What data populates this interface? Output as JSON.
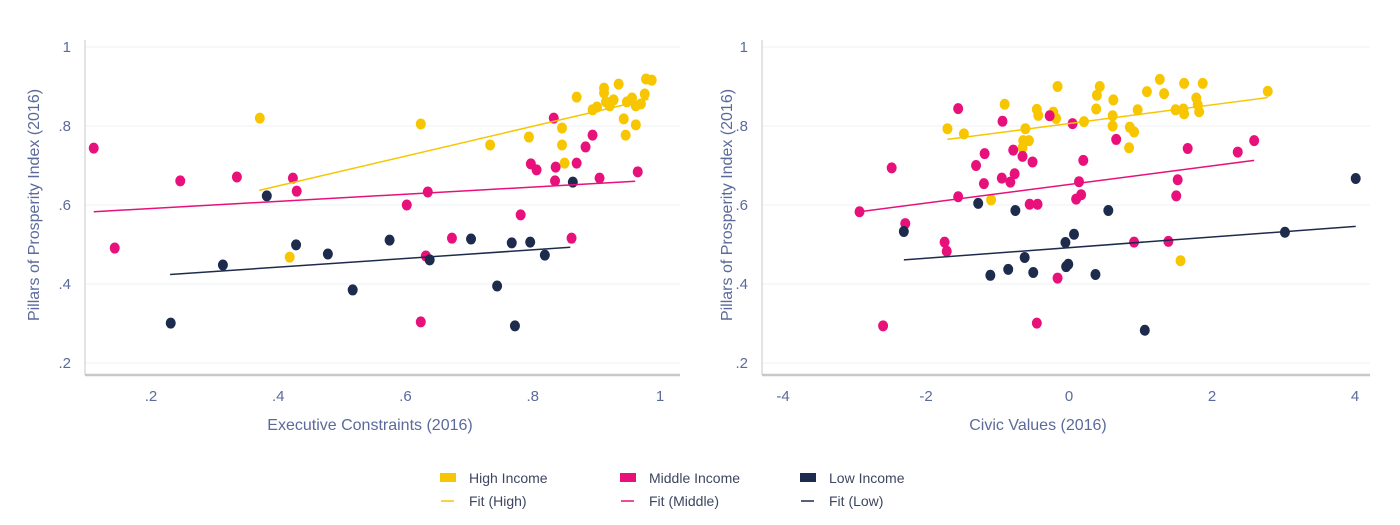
{
  "colors": {
    "high": "#f7c600",
    "middle": "#e8107a",
    "low": "#1d2b4c",
    "grid": "#eef1f3",
    "axis": "#c8c8c8"
  },
  "legend": {
    "items": [
      {
        "label": "High Income",
        "kind": "swatch",
        "series": "high"
      },
      {
        "label": "Middle Income",
        "kind": "swatch",
        "series": "middle"
      },
      {
        "label": "Low Income",
        "kind": "swatch",
        "series": "low"
      },
      {
        "label": "Fit (High)",
        "kind": "line",
        "series": "high"
      },
      {
        "label": "Fit (Middle)",
        "kind": "line",
        "series": "middle"
      },
      {
        "label": "Fit (Low)",
        "kind": "line",
        "series": "low"
      }
    ]
  },
  "chart_data": [
    {
      "type": "scatter",
      "xlabel": "Executive Constraints (2016)",
      "ylabel": "Pillars of Prosperity Index (2016)",
      "xlim": [
        0.096,
        1.03
      ],
      "ylim": [
        0.17,
        1.02
      ],
      "xticks": [
        {
          "v": 0.2,
          "label": ".2"
        },
        {
          "v": 0.4,
          "label": ".4"
        },
        {
          "v": 0.6,
          "label": ".6"
        },
        {
          "v": 0.8,
          "label": ".8"
        },
        {
          "v": 1,
          "label": "1"
        }
      ],
      "yticks": [
        {
          "v": 0.2,
          "label": ".2"
        },
        {
          "v": 0.4,
          "label": ".4"
        },
        {
          "v": 0.6,
          "label": ".6"
        },
        {
          "v": 0.8,
          "label": ".8"
        },
        {
          "v": 1,
          "label": "1"
        }
      ],
      "grid": true,
      "series": [
        {
          "name": "High Income",
          "key": "high",
          "points": [
            [
              0.371,
              0.82
            ],
            [
              0.624,
              0.805
            ],
            [
              0.418,
              0.468
            ],
            [
              0.733,
              0.752
            ],
            [
              0.794,
              0.772
            ],
            [
              0.846,
              0.795
            ],
            [
              0.846,
              0.752
            ],
            [
              0.85,
              0.706
            ],
            [
              0.869,
              0.873
            ],
            [
              0.894,
              0.841
            ],
            [
              0.901,
              0.848
            ],
            [
              0.912,
              0.896
            ],
            [
              0.912,
              0.884
            ],
            [
              0.915,
              0.861
            ],
            [
              0.921,
              0.851
            ],
            [
              0.927,
              0.866
            ],
            [
              0.935,
              0.906
            ],
            [
              0.943,
              0.818
            ],
            [
              0.946,
              0.777
            ],
            [
              0.948,
              0.861
            ],
            [
              0.956,
              0.871
            ],
            [
              0.962,
              0.851
            ],
            [
              0.97,
              0.856
            ],
            [
              0.976,
              0.881
            ],
            [
              0.978,
              0.919
            ],
            [
              0.987,
              0.916
            ],
            [
              0.962,
              0.803
            ]
          ]
        },
        {
          "name": "Middle Income",
          "key": "middle",
          "points": [
            [
              0.11,
              0.744
            ],
            [
              0.143,
              0.491
            ],
            [
              0.246,
              0.661
            ],
            [
              0.335,
              0.671
            ],
            [
              0.423,
              0.668
            ],
            [
              0.429,
              0.635
            ],
            [
              0.602,
              0.6
            ],
            [
              0.635,
              0.633
            ],
            [
              0.624,
              0.304
            ],
            [
              0.632,
              0.471
            ],
            [
              0.673,
              0.516
            ],
            [
              0.781,
              0.575
            ],
            [
              0.797,
              0.704
            ],
            [
              0.806,
              0.689
            ],
            [
              0.833,
              0.82
            ],
            [
              0.835,
              0.661
            ],
            [
              0.836,
              0.696
            ],
            [
              0.869,
              0.706
            ],
            [
              0.883,
              0.747
            ],
            [
              0.894,
              0.777
            ],
            [
              0.905,
              0.668
            ],
            [
              0.965,
              0.684
            ],
            [
              0.861,
              0.516
            ]
          ]
        },
        {
          "name": "Low Income",
          "key": "low",
          "points": [
            [
              0.231,
              0.301
            ],
            [
              0.313,
              0.448
            ],
            [
              0.382,
              0.623
            ],
            [
              0.428,
              0.499
            ],
            [
              0.478,
              0.476
            ],
            [
              0.517,
              0.385
            ],
            [
              0.575,
              0.511
            ],
            [
              0.638,
              0.461
            ],
            [
              0.703,
              0.514
            ],
            [
              0.744,
              0.395
            ],
            [
              0.767,
              0.504
            ],
            [
              0.772,
              0.294
            ],
            [
              0.796,
              0.506
            ],
            [
              0.819,
              0.473
            ],
            [
              0.863,
              0.658
            ]
          ]
        }
      ],
      "fits": [
        {
          "name": "Fit (High)",
          "key": "high",
          "from": [
            0.37,
            0.637
          ],
          "to": [
            0.982,
            0.868
          ]
        },
        {
          "name": "Fit (Middle)",
          "key": "middle",
          "from": [
            0.11,
            0.583
          ],
          "to": [
            0.961,
            0.66
          ]
        },
        {
          "name": "Fit (Low)",
          "key": "low",
          "from": [
            0.23,
            0.424
          ],
          "to": [
            0.859,
            0.493
          ]
        }
      ]
    },
    {
      "type": "scatter",
      "xlabel": "Civic Values (2016)",
      "ylabel": "Pillars of Prosperity Index (2016)",
      "xlim": [
        -4.3,
        4.2
      ],
      "ylim": [
        0.17,
        1.02
      ],
      "xticks": [
        {
          "v": -4,
          "label": "-4"
        },
        {
          "v": -2,
          "label": "-2"
        },
        {
          "v": 0,
          "label": "0"
        },
        {
          "v": 2,
          "label": "2"
        },
        {
          "v": 4,
          "label": "4"
        }
      ],
      "yticks": [
        {
          "v": 0.2,
          "label": ".2"
        },
        {
          "v": 0.4,
          "label": ".4"
        },
        {
          "v": 0.6,
          "label": ".6"
        },
        {
          "v": 0.8,
          "label": ".8"
        },
        {
          "v": 1,
          "label": "1"
        }
      ],
      "grid": true,
      "series": [
        {
          "name": "High Income",
          "key": "high",
          "points": [
            [
              -1.7,
              0.793
            ],
            [
              -1.47,
              0.78
            ],
            [
              -0.9,
              0.855
            ],
            [
              -0.61,
              0.793
            ],
            [
              -0.64,
              0.763
            ],
            [
              -0.56,
              0.763
            ],
            [
              -0.65,
              0.745
            ],
            [
              -1.09,
              0.613
            ],
            [
              -0.45,
              0.842
            ],
            [
              -0.43,
              0.827
            ],
            [
              -0.22,
              0.835
            ],
            [
              -0.18,
              0.819
            ],
            [
              -0.16,
              0.9
            ],
            [
              0.21,
              0.811
            ],
            [
              0.38,
              0.843
            ],
            [
              0.39,
              0.878
            ],
            [
              0.43,
              0.9
            ],
            [
              0.62,
              0.866
            ],
            [
              0.61,
              0.826
            ],
            [
              0.61,
              0.8
            ],
            [
              0.85,
              0.797
            ],
            [
              0.91,
              0.785
            ],
            [
              0.84,
              0.745
            ],
            [
              0.96,
              0.841
            ],
            [
              1.09,
              0.887
            ],
            [
              1.27,
              0.918
            ],
            [
              1.33,
              0.882
            ],
            [
              1.49,
              0.841
            ],
            [
              1.6,
              0.843
            ],
            [
              1.61,
              0.831
            ],
            [
              1.61,
              0.908
            ],
            [
              1.78,
              0.871
            ],
            [
              1.8,
              0.854
            ],
            [
              1.82,
              0.836
            ],
            [
              1.87,
              0.908
            ],
            [
              2.78,
              0.888
            ],
            [
              1.56,
              0.459
            ]
          ]
        },
        {
          "name": "Middle Income",
          "key": "middle",
          "points": [
            [
              -2.93,
              0.583
            ],
            [
              -2.6,
              0.294
            ],
            [
              -2.48,
              0.694
            ],
            [
              -2.29,
              0.553
            ],
            [
              -1.74,
              0.506
            ],
            [
              -1.71,
              0.483
            ],
            [
              -1.55,
              0.844
            ],
            [
              -1.55,
              0.621
            ],
            [
              -1.3,
              0.7
            ],
            [
              -1.19,
              0.654
            ],
            [
              -1.18,
              0.73
            ],
            [
              -0.94,
              0.668
            ],
            [
              -0.93,
              0.812
            ],
            [
              -0.82,
              0.658
            ],
            [
              -0.78,
              0.739
            ],
            [
              -0.76,
              0.679
            ],
            [
              -0.65,
              0.723
            ],
            [
              -0.55,
              0.602
            ],
            [
              -0.51,
              0.709
            ],
            [
              -0.44,
              0.602
            ],
            [
              -0.45,
              0.301
            ],
            [
              -0.27,
              0.826
            ],
            [
              -0.16,
              0.415
            ],
            [
              0.05,
              0.806
            ],
            [
              0.1,
              0.615
            ],
            [
              0.14,
              0.659
            ],
            [
              0.17,
              0.626
            ],
            [
              0.2,
              0.713
            ],
            [
              0.66,
              0.766
            ],
            [
              0.91,
              0.506
            ],
            [
              1.39,
              0.508
            ],
            [
              1.5,
              0.623
            ],
            [
              1.52,
              0.664
            ],
            [
              1.66,
              0.743
            ],
            [
              2.36,
              0.734
            ],
            [
              2.59,
              0.763
            ]
          ]
        },
        {
          "name": "Low Income",
          "key": "low",
          "points": [
            [
              -2.31,
              0.533
            ],
            [
              -1.27,
              0.604
            ],
            [
              -1.1,
              0.422
            ],
            [
              -0.85,
              0.437
            ],
            [
              -0.75,
              0.586
            ],
            [
              -0.62,
              0.467
            ],
            [
              -0.5,
              0.429
            ],
            [
              -0.05,
              0.505
            ],
            [
              -0.04,
              0.444
            ],
            [
              -0.01,
              0.45
            ],
            [
              0.07,
              0.526
            ],
            [
              0.37,
              0.424
            ],
            [
              0.55,
              0.586
            ],
            [
              1.06,
              0.283
            ],
            [
              3.02,
              0.531
            ],
            [
              4.01,
              0.667
            ]
          ]
        }
      ],
      "fits": [
        {
          "name": "Fit (High)",
          "key": "high",
          "from": [
            -1.7,
            0.766
          ],
          "to": [
            2.78,
            0.872
          ]
        },
        {
          "name": "Fit (Middle)",
          "key": "middle",
          "from": [
            -2.93,
            0.583
          ],
          "to": [
            2.59,
            0.713
          ]
        },
        {
          "name": "Fit (Low)",
          "key": "low",
          "from": [
            -2.31,
            0.461
          ],
          "to": [
            4.01,
            0.546
          ]
        }
      ]
    }
  ]
}
